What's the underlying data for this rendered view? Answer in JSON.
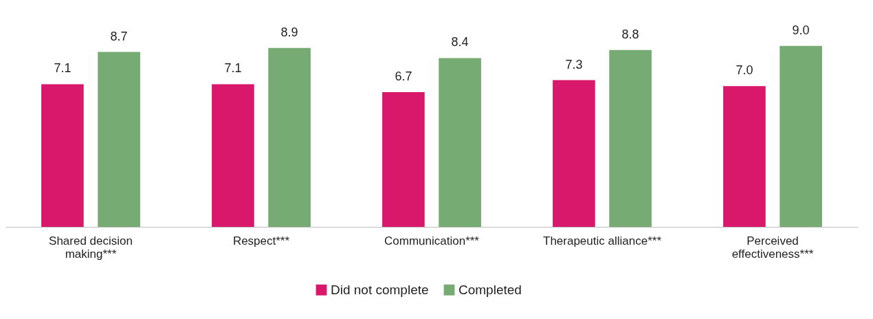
{
  "chart_data": {
    "type": "bar",
    "categories": [
      "Shared decision\nmaking***",
      "Respect***",
      "Communication***",
      "Therapeutic alliance***",
      "Perceived\neffectiveness***"
    ],
    "series": [
      {
        "name": "Did not complete",
        "color": "#d9186b",
        "values": [
          7.1,
          7.1,
          6.7,
          7.3,
          7.0
        ],
        "value_labels": [
          "7.1",
          "7.1",
          "6.7",
          "7.3",
          "7.0"
        ]
      },
      {
        "name": "Completed",
        "color": "#76ab73",
        "values": [
          8.7,
          8.9,
          8.4,
          8.8,
          9.0
        ],
        "value_labels": [
          "8.7",
          "8.9",
          "8.4",
          "8.8",
          "9.0"
        ]
      }
    ],
    "grid": false,
    "legend": "bottom"
  }
}
